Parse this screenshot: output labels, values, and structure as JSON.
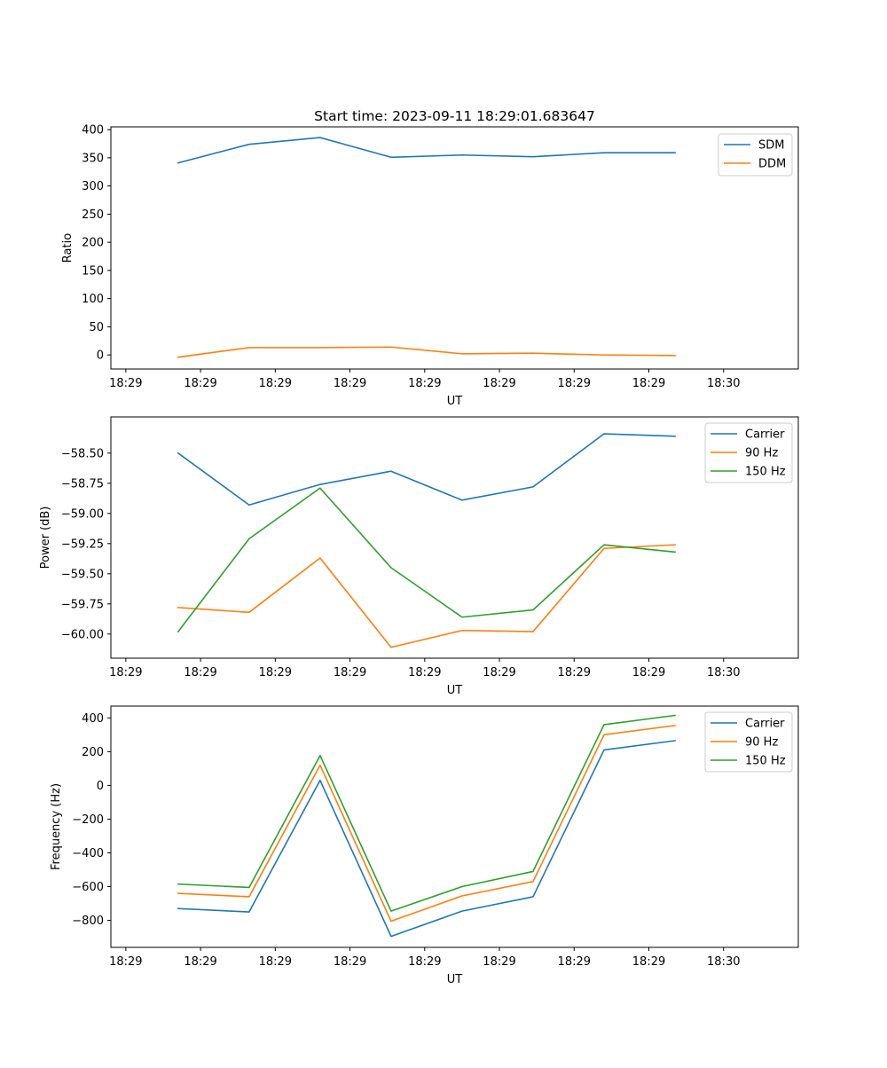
{
  "chart_data": [
    {
      "type": "line",
      "title": "Start time: 2023-09-11 18:29:01.683647",
      "xlabel": "UT",
      "ylabel": "Ratio",
      "xlim": [
        0,
        9.2
      ],
      "xticks": [
        0.2,
        1.2,
        2.2,
        3.2,
        4.2,
        5.2,
        6.2,
        7.2,
        8.2
      ],
      "xtick_labels": [
        "18:29",
        "18:29",
        "18:29",
        "18:29",
        "18:29",
        "18:29",
        "18:29",
        "18:29",
        "18:30"
      ],
      "ylim": [
        -25,
        405
      ],
      "yticks": [
        0,
        50,
        100,
        150,
        200,
        250,
        300,
        350,
        400
      ],
      "ytick_labels": [
        "0",
        "50",
        "100",
        "150",
        "200",
        "250",
        "300",
        "350",
        "400"
      ],
      "legend_position": "top-right",
      "x": [
        0.9,
        1.85,
        2.8,
        3.75,
        4.7,
        5.65,
        6.6,
        7.55
      ],
      "series": [
        {
          "name": "SDM",
          "color": "#1f77b4",
          "values": [
            341,
            374,
            386,
            351,
            355,
            352,
            359,
            359
          ]
        },
        {
          "name": "DDM",
          "color": "#ff7f0e",
          "values": [
            -4,
            13,
            13,
            14,
            2,
            3,
            0,
            -1
          ]
        }
      ]
    },
    {
      "type": "line",
      "title": "",
      "xlabel": "UT",
      "ylabel": "Power (dB)",
      "xlim": [
        0,
        9.2
      ],
      "xticks": [
        0.2,
        1.2,
        2.2,
        3.2,
        4.2,
        5.2,
        6.2,
        7.2,
        8.2
      ],
      "xtick_labels": [
        "18:29",
        "18:29",
        "18:29",
        "18:29",
        "18:29",
        "18:29",
        "18:29",
        "18:29",
        "18:30"
      ],
      "ylim": [
        -60.2,
        -58.2
      ],
      "yticks": [
        -60.0,
        -59.75,
        -59.5,
        -59.25,
        -59.0,
        -58.75,
        -58.5
      ],
      "ytick_labels": [
        "−60.00",
        "−59.75",
        "−59.50",
        "−59.25",
        "−59.00",
        "−58.75",
        "−58.50"
      ],
      "legend_position": "top-right",
      "x": [
        0.9,
        1.85,
        2.8,
        3.75,
        4.7,
        5.65,
        6.6,
        7.55
      ],
      "series": [
        {
          "name": "Carrier",
          "color": "#1f77b4",
          "values": [
            -58.5,
            -58.93,
            -58.76,
            -58.65,
            -58.89,
            -58.78,
            -58.34,
            -58.36
          ]
        },
        {
          "name": "90 Hz",
          "color": "#ff7f0e",
          "values": [
            -59.78,
            -59.82,
            -59.37,
            -60.11,
            -59.97,
            -59.98,
            -59.29,
            -59.26
          ]
        },
        {
          "name": "150 Hz",
          "color": "#2ca02c",
          "values": [
            -59.98,
            -59.21,
            -58.79,
            -59.45,
            -59.86,
            -59.8,
            -59.26,
            -59.32
          ]
        }
      ]
    },
    {
      "type": "line",
      "title": "",
      "xlabel": "UT",
      "ylabel": "Frequency (Hz)",
      "xlim": [
        0,
        9.2
      ],
      "xticks": [
        0.2,
        1.2,
        2.2,
        3.2,
        4.2,
        5.2,
        6.2,
        7.2,
        8.2
      ],
      "xtick_labels": [
        "18:29",
        "18:29",
        "18:29",
        "18:29",
        "18:29",
        "18:29",
        "18:29",
        "18:29",
        "18:30"
      ],
      "ylim": [
        -960,
        470
      ],
      "yticks": [
        -800,
        -600,
        -400,
        -200,
        0,
        200,
        400
      ],
      "ytick_labels": [
        "−800",
        "−600",
        "−400",
        "−200",
        "0",
        "200",
        "400"
      ],
      "legend_position": "top-right",
      "x": [
        0.9,
        1.85,
        2.8,
        3.75,
        4.7,
        5.65,
        6.6,
        7.55
      ],
      "series": [
        {
          "name": "Carrier",
          "color": "#1f77b4",
          "values": [
            -730,
            -750,
            30,
            -895,
            -745,
            -660,
            210,
            265
          ]
        },
        {
          "name": "90 Hz",
          "color": "#ff7f0e",
          "values": [
            -640,
            -660,
            120,
            -805,
            -655,
            -570,
            300,
            355
          ]
        },
        {
          "name": "150 Hz",
          "color": "#2ca02c",
          "values": [
            -585,
            -605,
            177,
            -745,
            -600,
            -510,
            360,
            415
          ]
        }
      ]
    }
  ]
}
